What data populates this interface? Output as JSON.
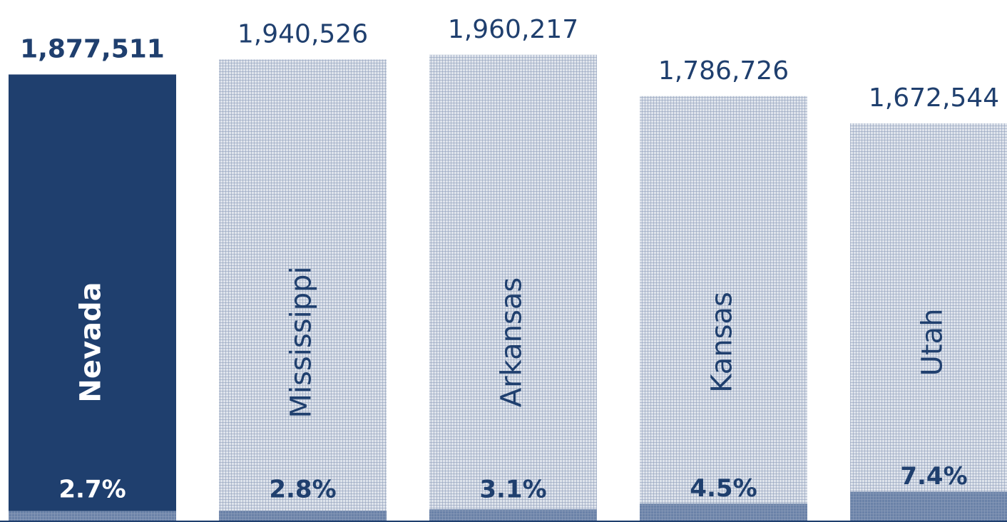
{
  "chart_data": {
    "type": "bar",
    "categories": [
      "Nevada",
      "Mississippi",
      "Arkansas",
      "Kansas",
      "Utah"
    ],
    "values": [
      1877511,
      1940526,
      1960217,
      1786726,
      1672544
    ],
    "value_labels": [
      "1,877,511",
      "1,940,526",
      "1,960,217",
      "1,786,726",
      "1,672,544"
    ],
    "colors": [
      "#1f3f6e",
      "#dfe4ec",
      "#dfe4ec",
      "#dfe4ec",
      "#dfe4ec"
    ],
    "hatched": [
      false,
      true,
      true,
      true,
      true
    ],
    "ylim": [
      0,
      2190000
    ],
    "share": {
      "values": [
        2.7,
        2.8,
        3.1,
        4.5,
        7.4
      ],
      "value_labels": [
        "2.7%",
        "2.8%",
        "3.1%",
        "4.5%",
        "7.4%"
      ],
      "color": "#6a82a8",
      "y2lim": [
        0,
        128
      ]
    }
  }
}
